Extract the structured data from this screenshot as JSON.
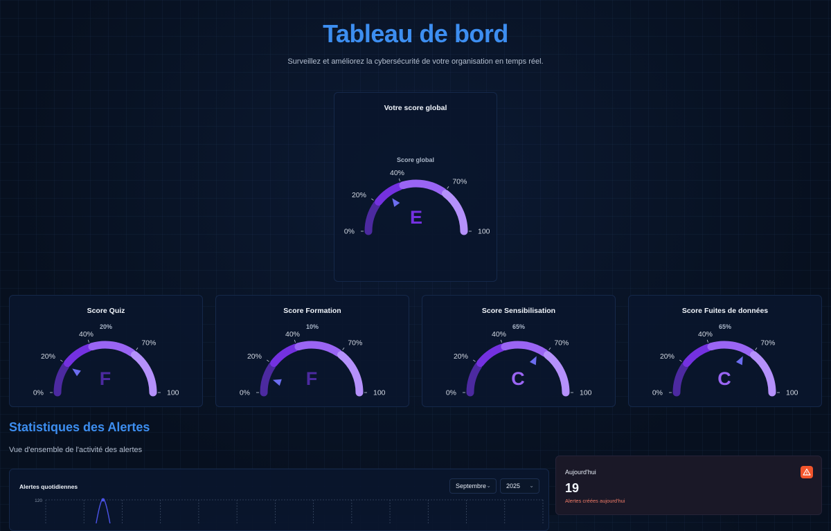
{
  "header": {
    "title": "Tableau de bord",
    "subtitle": "Surveillez et améliorez la cybersécurité de votre organisation en temps réel."
  },
  "global_score": {
    "card_title": "Votre score global",
    "gauge_label": "Score global",
    "grade": "E",
    "value": 30,
    "ticks": {
      "t0": "0%",
      "t20": "20%",
      "t40": "40%",
      "t70": "70%",
      "t100": "100"
    }
  },
  "score_cards": [
    {
      "title": "Score Quiz",
      "percent_label": "20%",
      "value": 20,
      "grade": "F"
    },
    {
      "title": "Score Formation",
      "percent_label": "10%",
      "value": 10,
      "grade": "F"
    },
    {
      "title": "Score Sensibilisation",
      "percent_label": "65%",
      "value": 65,
      "grade": "C"
    },
    {
      "title": "Score Fuites de données",
      "percent_label": "65%",
      "value": 65,
      "grade": "C"
    }
  ],
  "gauge_colors": {
    "seg1": "#4c2aa0",
    "seg2": "#7431e0",
    "seg3": "#9a65f3",
    "seg4": "#b591fb",
    "needle": "#6c6df0",
    "grade_low": "#4c2aa0",
    "grade_mid": "#7431e0",
    "grade_high": "#9a65f3"
  },
  "alerts": {
    "section_title": "Statistiques des Alertes",
    "section_subtitle": "Vue d'ensemble de l'activité des alertes",
    "chart": {
      "title": "Alertes quotidiennes",
      "month_select": "Septembre",
      "year_select": "2025",
      "y_top_label": "120"
    },
    "today": {
      "label": "Aujourd'hui",
      "count": "19",
      "description": "Alertes créées aujourd'hui",
      "icon": "alert-triangle-icon",
      "icon_color": "#f2552c"
    }
  },
  "chart_data": {
    "type": "line",
    "title": "Alertes quotidiennes",
    "y_visible_top": 120,
    "peak_value": 120
  }
}
